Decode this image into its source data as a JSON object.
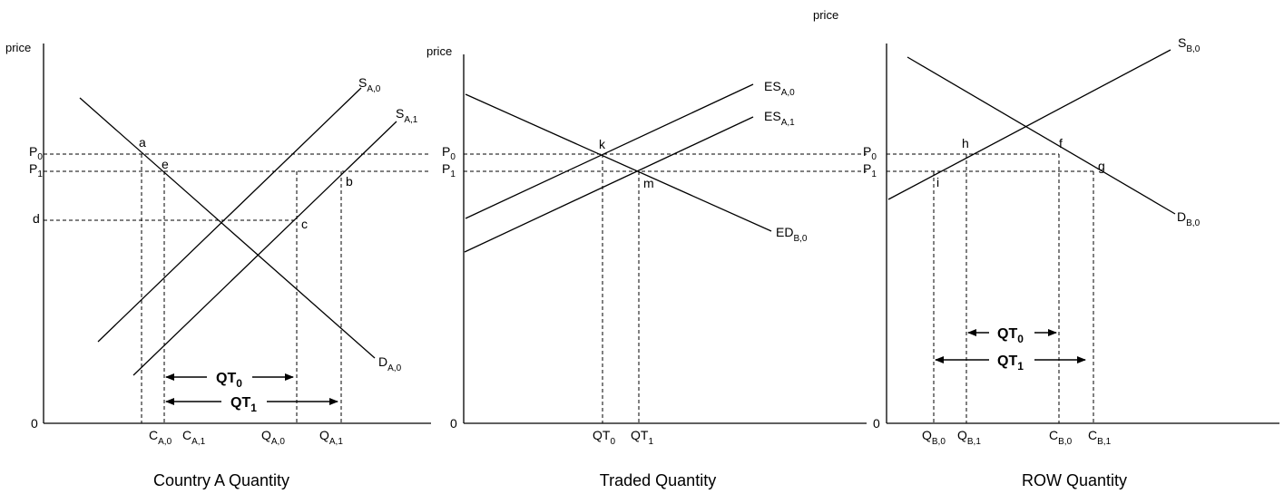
{
  "yaxis_label": "price",
  "orphan_price_label": "price",
  "origin_label": "0",
  "panels": {
    "a": {
      "title": "Country A Quantity",
      "p0": {
        "b": "P",
        "s": "0"
      },
      "p1": {
        "b": "P",
        "s": "1"
      },
      "d": "d",
      "points": {
        "a": "a",
        "e": "e",
        "b": "b",
        "c": "c"
      },
      "curves": {
        "s0": {
          "b": "S",
          "s": "A,0"
        },
        "s1": {
          "b": "S",
          "s": "A,1"
        },
        "d0": {
          "b": "D",
          "s": "A,0"
        }
      },
      "xticks": {
        "ca0": {
          "b": "C",
          "s": "A,0"
        },
        "ca1": {
          "b": "C",
          "s": "A,1"
        },
        "qa0": {
          "b": "Q",
          "s": "A,0"
        },
        "qa1": {
          "b": "Q",
          "s": "A,1"
        }
      },
      "qt0": {
        "b": "QT",
        "s": "0"
      },
      "qt1": {
        "b": "QT",
        "s": "1"
      }
    },
    "t": {
      "title": "Traded Quantity",
      "p0": {
        "b": "P",
        "s": "0"
      },
      "p1": {
        "b": "P",
        "s": "1"
      },
      "points": {
        "k": "k",
        "m": "m"
      },
      "curves": {
        "es0": {
          "b": "ES",
          "s": "A,0"
        },
        "es1": {
          "b": "ES",
          "s": "A,1"
        },
        "ed0": {
          "b": "ED",
          "s": "B,0"
        }
      },
      "xticks": {
        "qt0": {
          "b": "QT",
          "s": "0"
        },
        "qt1": {
          "b": "QT",
          "s": "1"
        }
      }
    },
    "r": {
      "title": "ROW Quantity",
      "p0": {
        "b": "P",
        "s": "0"
      },
      "p1": {
        "b": "P",
        "s": "1"
      },
      "points": {
        "h": "h",
        "f": "f",
        "i": "i",
        "g": "g"
      },
      "curves": {
        "s0": {
          "b": "S",
          "s": "B,0"
        },
        "d0": {
          "b": "D",
          "s": "B,0"
        }
      },
      "xticks": {
        "qb0": {
          "b": "Q",
          "s": "B,0"
        },
        "qb1": {
          "b": "Q",
          "s": "B,1"
        },
        "cb0": {
          "b": "C",
          "s": "B,0"
        },
        "cb1": {
          "b": "C",
          "s": "B,1"
        }
      },
      "qt0": {
        "b": "QT",
        "s": "0"
      },
      "qt1": {
        "b": "QT",
        "s": "1"
      }
    }
  }
}
